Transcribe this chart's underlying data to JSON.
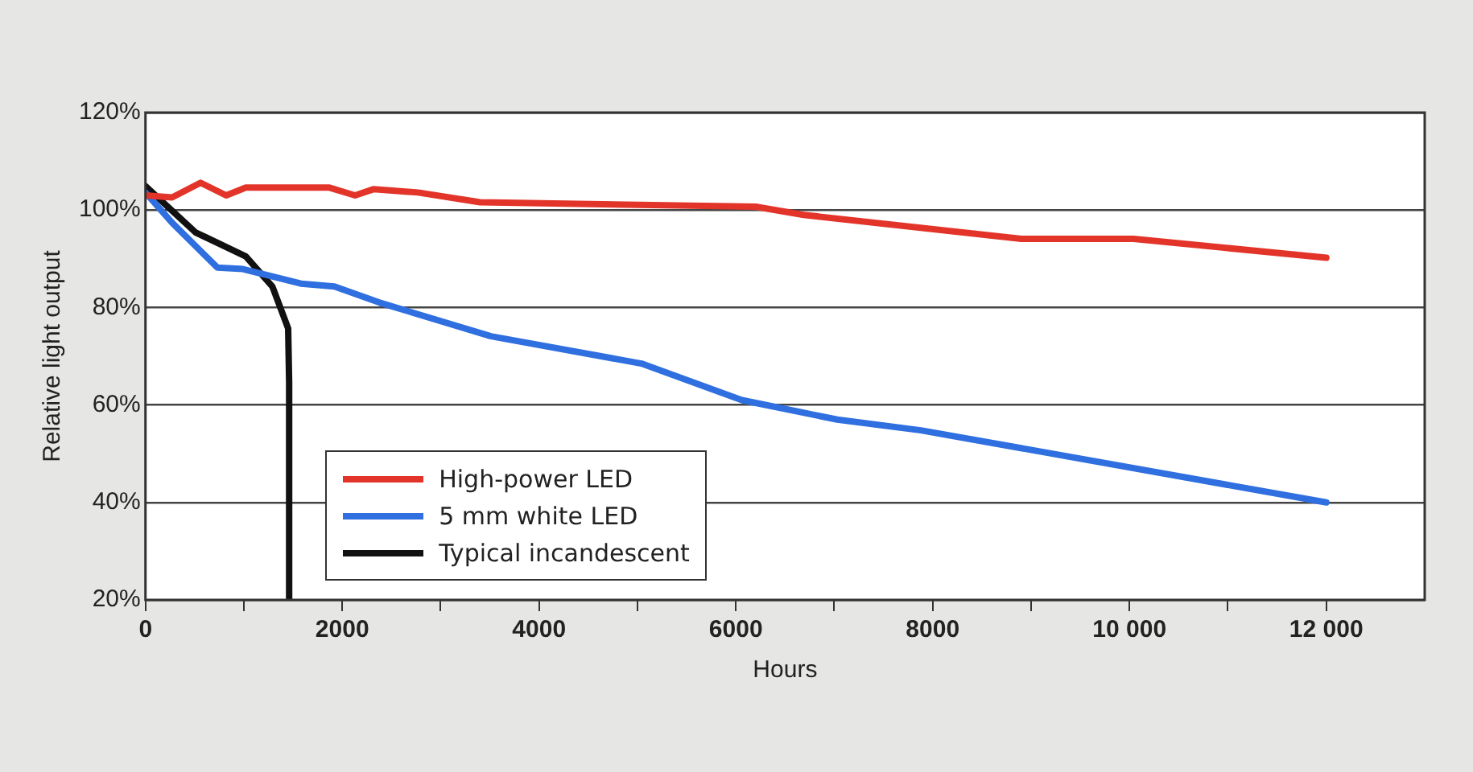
{
  "chart_data": {
    "type": "line",
    "xlabel": "Hours",
    "ylabel": "Relative light output",
    "xlim": [
      0,
      13000
    ],
    "ylim": [
      20,
      120
    ],
    "xticks": [
      {
        "value": 0,
        "label": "0"
      },
      {
        "value": 1000,
        "label": null
      },
      {
        "value": 2000,
        "label": "2000"
      },
      {
        "value": 3000,
        "label": null
      },
      {
        "value": 4000,
        "label": "4000"
      },
      {
        "value": 5000,
        "label": null
      },
      {
        "value": 6000,
        "label": "6000"
      },
      {
        "value": 7000,
        "label": null
      },
      {
        "value": 8000,
        "label": "8000"
      },
      {
        "value": 9000,
        "label": null
      },
      {
        "value": 10000,
        "label": "10 000"
      },
      {
        "value": 11000,
        "label": null
      },
      {
        "value": 12000,
        "label": "12 000"
      }
    ],
    "yticks": [
      {
        "value": 20,
        "label": "20%"
      },
      {
        "value": 40,
        "label": "40%"
      },
      {
        "value": 60,
        "label": "60%"
      },
      {
        "value": 80,
        "label": "80%"
      },
      {
        "value": 100,
        "label": "100%"
      },
      {
        "value": 120,
        "label": "120%"
      }
    ],
    "grid": "y",
    "legend": "bottom left",
    "marker": "none",
    "line_style": "solid",
    "series": [
      {
        "name": "High-power LED",
        "color": "#e3342a",
        "x": [
          0,
          270,
          560,
          820,
          1020,
          1870,
          2130,
          2320,
          2770,
          3400,
          6200,
          6690,
          8900,
          9240,
          10040,
          12000
        ],
        "values": [
          103,
          102.6,
          105.6,
          103,
          104.6,
          104.6,
          103,
          104.3,
          103.6,
          101.6,
          100.7,
          99,
          94.1,
          94.1,
          94.1,
          90.2
        ]
      },
      {
        "name": "5 mm white LED",
        "color": "#2f6fe0",
        "x": [
          0,
          270,
          730,
          990,
          1580,
          1920,
          2380,
          3510,
          5040,
          6060,
          7030,
          7880,
          12000
        ],
        "values": [
          103.6,
          97.4,
          88.2,
          87.9,
          84.9,
          84.3,
          81,
          74.1,
          68.5,
          61,
          57,
          54.8,
          40
        ]
      },
      {
        "name": "Typical incandescent",
        "color": "#111111",
        "x": [
          0,
          510,
          1020,
          1290,
          1450,
          1460,
          1460
        ],
        "values": [
          104.9,
          95.4,
          90.5,
          84.3,
          75.7,
          64.6,
          20
        ]
      }
    ]
  }
}
